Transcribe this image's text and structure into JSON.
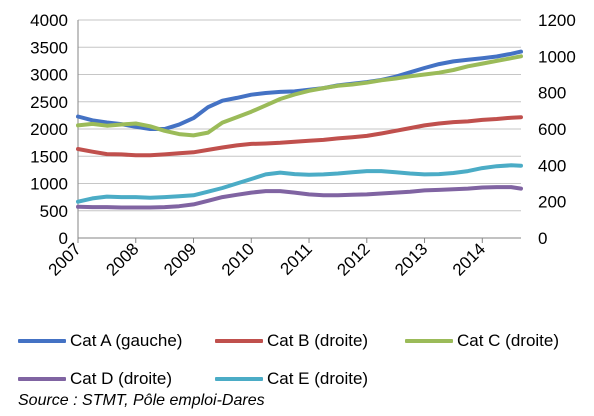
{
  "chart_data": {
    "type": "line",
    "title": "",
    "x_ticks": [
      "2007",
      "2008",
      "2009",
      "2010",
      "2011",
      "2012",
      "2013",
      "2014"
    ],
    "xlim": [
      2007.0,
      2014.67
    ],
    "y_left": {
      "ylim": [
        0,
        4000
      ],
      "ticks": [
        "0",
        "500",
        "1000",
        "1500",
        "2000",
        "2500",
        "3000",
        "3500",
        "4000"
      ]
    },
    "y_right": {
      "ylim": [
        0,
        1200
      ],
      "ticks": [
        "0",
        "200",
        "400",
        "600",
        "800",
        "1000",
        "1200"
      ]
    },
    "grid": true,
    "legend_position": "bottom",
    "series": [
      {
        "name": "Cat A (gauche)",
        "axis": "left",
        "color": "#4472C4",
        "x": [
          2007.0,
          2007.25,
          2007.5,
          2007.75,
          2008.0,
          2008.25,
          2008.5,
          2008.75,
          2009.0,
          2009.25,
          2009.5,
          2009.75,
          2010.0,
          2010.25,
          2010.5,
          2010.75,
          2011.0,
          2011.25,
          2011.5,
          2011.75,
          2012.0,
          2012.25,
          2012.5,
          2012.75,
          2013.0,
          2013.25,
          2013.5,
          2013.75,
          2014.0,
          2014.25,
          2014.5,
          2014.67
        ],
        "values": [
          2230,
          2160,
          2120,
          2090,
          2040,
          2000,
          2000,
          2080,
          2200,
          2400,
          2520,
          2570,
          2630,
          2660,
          2680,
          2690,
          2720,
          2750,
          2800,
          2830,
          2860,
          2900,
          2960,
          3040,
          3120,
          3190,
          3240,
          3270,
          3300,
          3330,
          3380,
          3420
        ]
      },
      {
        "name": "Cat B (droite)",
        "axis": "right",
        "color": "#C0504D",
        "x": [
          2007.0,
          2007.25,
          2007.5,
          2007.75,
          2008.0,
          2008.25,
          2008.5,
          2008.75,
          2009.0,
          2009.25,
          2009.5,
          2009.75,
          2010.0,
          2010.25,
          2010.5,
          2010.75,
          2011.0,
          2011.25,
          2011.5,
          2011.75,
          2012.0,
          2012.25,
          2012.5,
          2012.75,
          2013.0,
          2013.25,
          2013.5,
          2013.75,
          2014.0,
          2014.25,
          2014.5,
          2014.67
        ],
        "values": [
          490,
          475,
          462,
          460,
          455,
          456,
          460,
          466,
          472,
          485,
          498,
          510,
          518,
          520,
          524,
          530,
          535,
          540,
          548,
          555,
          562,
          575,
          590,
          605,
          620,
          630,
          638,
          642,
          650,
          655,
          662,
          665
        ]
      },
      {
        "name": "Cat C (droite)",
        "axis": "right",
        "color": "#9BBB59",
        "x": [
          2007.0,
          2007.25,
          2007.5,
          2007.75,
          2008.0,
          2008.25,
          2008.5,
          2008.75,
          2009.0,
          2009.25,
          2009.5,
          2009.75,
          2010.0,
          2010.25,
          2010.5,
          2010.75,
          2011.0,
          2011.25,
          2011.5,
          2011.75,
          2012.0,
          2012.25,
          2012.5,
          2012.75,
          2013.0,
          2013.25,
          2013.5,
          2013.75,
          2014.0,
          2014.25,
          2014.5,
          2014.67
        ],
        "values": [
          620,
          628,
          618,
          625,
          630,
          615,
          590,
          572,
          565,
          580,
          635,
          665,
          695,
          730,
          765,
          790,
          810,
          825,
          838,
          845,
          855,
          868,
          878,
          890,
          900,
          910,
          925,
          945,
          960,
          975,
          990,
          1000
        ]
      },
      {
        "name": "Cat D (droite)",
        "axis": "right",
        "color": "#8064A2",
        "x": [
          2007.0,
          2007.25,
          2007.5,
          2007.75,
          2008.0,
          2008.25,
          2008.5,
          2008.75,
          2009.0,
          2009.25,
          2009.5,
          2009.75,
          2010.0,
          2010.25,
          2010.5,
          2010.75,
          2011.0,
          2011.25,
          2011.5,
          2011.75,
          2012.0,
          2012.25,
          2012.5,
          2012.75,
          2013.0,
          2013.25,
          2013.5,
          2013.75,
          2014.0,
          2014.25,
          2014.5,
          2014.67
        ],
        "values": [
          172,
          170,
          170,
          168,
          168,
          168,
          170,
          175,
          185,
          205,
          225,
          238,
          250,
          258,
          258,
          250,
          240,
          235,
          235,
          238,
          240,
          245,
          250,
          255,
          262,
          265,
          268,
          272,
          278,
          280,
          280,
          272
        ]
      },
      {
        "name": "Cat E (droite)",
        "axis": "right",
        "color": "#4BACC6",
        "x": [
          2007.0,
          2007.25,
          2007.5,
          2007.75,
          2008.0,
          2008.25,
          2008.5,
          2008.75,
          2009.0,
          2009.25,
          2009.5,
          2009.75,
          2010.0,
          2010.25,
          2010.5,
          2010.75,
          2011.0,
          2011.25,
          2011.5,
          2011.75,
          2012.0,
          2012.25,
          2012.5,
          2012.75,
          2013.0,
          2013.25,
          2013.5,
          2013.75,
          2014.0,
          2014.25,
          2014.5,
          2014.67
        ],
        "values": [
          200,
          218,
          228,
          225,
          225,
          222,
          225,
          230,
          235,
          255,
          275,
          300,
          325,
          350,
          360,
          352,
          348,
          350,
          355,
          362,
          368,
          368,
          362,
          355,
          350,
          352,
          358,
          368,
          385,
          395,
          400,
          398
        ]
      }
    ]
  },
  "source": "Source : STMT, Pôle emploi-Dares"
}
